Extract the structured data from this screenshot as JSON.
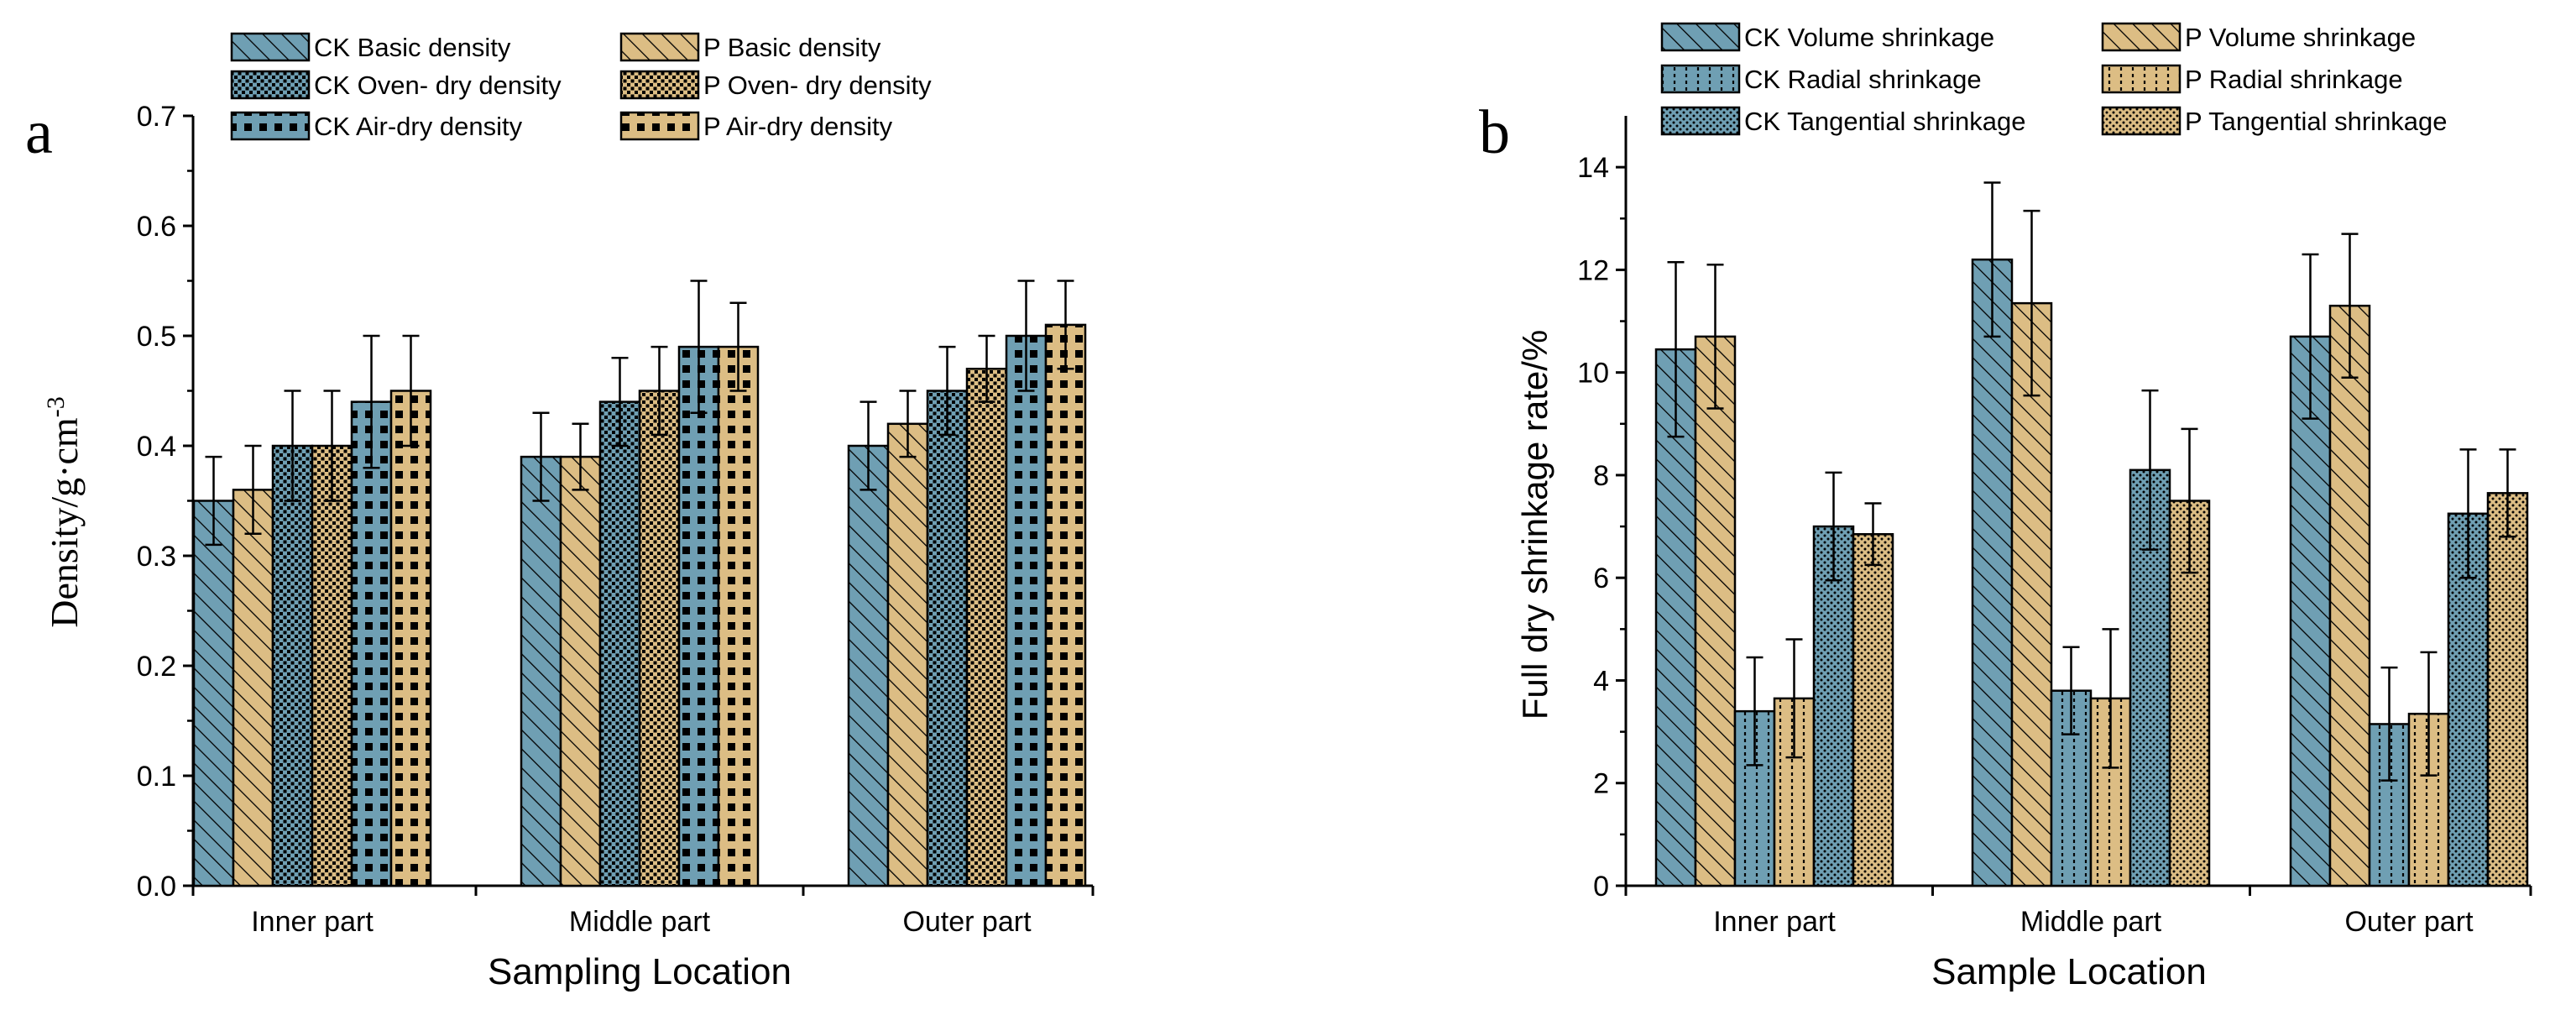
{
  "colors": {
    "ck": "#6f9fb3",
    "p": "#dcbd84",
    "ink": "#000000"
  },
  "chart_data": [
    {
      "type": "bar",
      "panel_label": "a",
      "title": "",
      "xlabel": "Sampling Location",
      "ylabel": "Density/g·cm-3",
      "ylabel_base": "Density/g·cm",
      "ylabel_exp": "-3",
      "ylim": [
        0,
        0.7
      ],
      "yticks": [
        "0.0",
        "0.1",
        "0.2",
        "0.3",
        "0.4",
        "0.5",
        "0.6",
        "0.7"
      ],
      "legend_position": "top",
      "categories": [
        "Inner part",
        "Middle part",
        "Outer part"
      ],
      "series": [
        {
          "name": "CK Basic density",
          "group": "ck",
          "pattern": "diag",
          "values": [
            0.35,
            0.39,
            0.4
          ],
          "errors": [
            0.04,
            0.04,
            0.04
          ]
        },
        {
          "name": "P Basic density",
          "group": "p",
          "pattern": "diag",
          "values": [
            0.36,
            0.39,
            0.42
          ],
          "errors": [
            0.04,
            0.03,
            0.03
          ]
        },
        {
          "name": "CK Oven- dry density",
          "group": "ck",
          "pattern": "dense",
          "values": [
            0.4,
            0.44,
            0.45
          ],
          "errors": [
            0.05,
            0.04,
            0.04
          ]
        },
        {
          "name": "P Oven- dry density",
          "group": "p",
          "pattern": "dense",
          "values": [
            0.4,
            0.45,
            0.47
          ],
          "errors": [
            0.05,
            0.04,
            0.03
          ]
        },
        {
          "name": "CK Air-dry density",
          "group": "ck",
          "pattern": "squares",
          "values": [
            0.44,
            0.49,
            0.5
          ],
          "errors": [
            0.06,
            0.06,
            0.05
          ]
        },
        {
          "name": "P Air-dry density",
          "group": "p",
          "pattern": "squares",
          "values": [
            0.45,
            0.49,
            0.51
          ],
          "errors": [
            0.05,
            0.04,
            0.04
          ]
        }
      ]
    },
    {
      "type": "bar",
      "panel_label": "b",
      "title": "",
      "xlabel": "Sample Location",
      "ylabel": "Full dry shrinkage rate/%",
      "ylim": [
        0,
        15
      ],
      "yticks": [
        "0",
        "2",
        "4",
        "6",
        "8",
        "10",
        "12",
        "14"
      ],
      "legend_position": "top",
      "categories": [
        "Inner part",
        "Middle part",
        "Outer part"
      ],
      "series": [
        {
          "name": "CK Volume shrinkage",
          "group": "ck",
          "pattern": "diag",
          "values": [
            10.45,
            12.2,
            10.7
          ],
          "errors": [
            1.7,
            1.5,
            1.6
          ]
        },
        {
          "name": "P Volume shrinkage",
          "group": "p",
          "pattern": "diag",
          "values": [
            10.7,
            11.35,
            11.3
          ],
          "errors": [
            1.4,
            1.8,
            1.4
          ]
        },
        {
          "name": "CK Radial shrinkage",
          "group": "ck",
          "pattern": "vdots",
          "values": [
            3.4,
            3.8,
            3.15
          ],
          "errors": [
            1.05,
            0.85,
            1.1
          ]
        },
        {
          "name": "P Radial shrinkage",
          "group": "p",
          "pattern": "vdots",
          "values": [
            3.65,
            3.65,
            3.35
          ],
          "errors": [
            1.15,
            1.35,
            1.2
          ]
        },
        {
          "name": "CK Tangential shrinkage",
          "group": "ck",
          "pattern": "dots",
          "values": [
            7.0,
            8.1,
            7.25
          ],
          "errors": [
            1.05,
            1.55,
            1.25
          ]
        },
        {
          "name": "P Tangential shrinkage",
          "group": "p",
          "pattern": "dots",
          "values": [
            6.85,
            7.5,
            7.65
          ],
          "errors": [
            0.6,
            1.4,
            0.85
          ]
        }
      ]
    }
  ]
}
